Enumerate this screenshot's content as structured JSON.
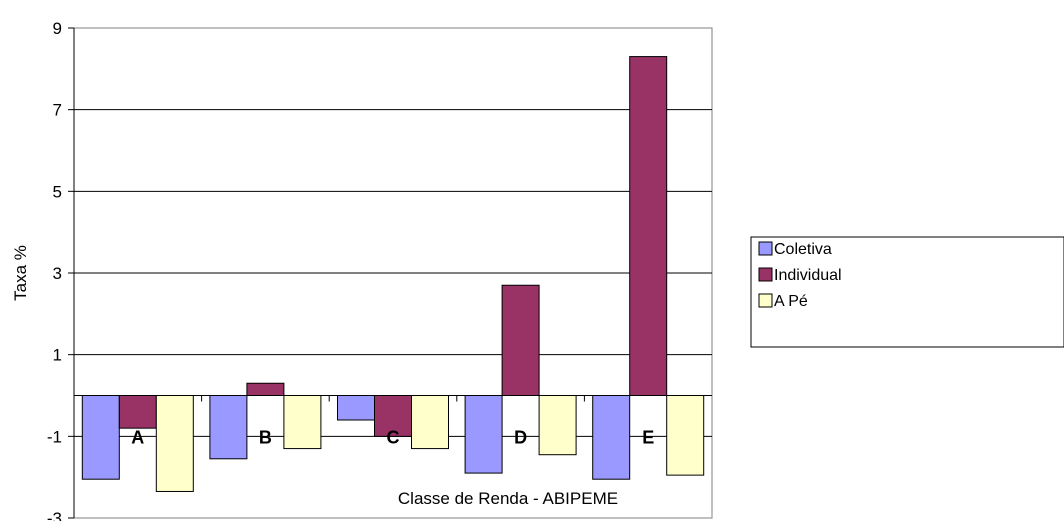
{
  "chart_data": {
    "type": "bar",
    "title": "",
    "xlabel": "Classe de Renda -  ABIPEME",
    "ylabel": "Taxa %",
    "ylim": [
      -3,
      9
    ],
    "yticks": [
      -3,
      -1,
      1,
      3,
      5,
      7,
      9
    ],
    "grid": true,
    "legend_position": "right",
    "categories": [
      "A",
      "B",
      "C",
      "D",
      "E"
    ],
    "series": [
      {
        "name": "Coletiva",
        "color": "#9999ff",
        "values": [
          -2.05,
          -1.55,
          -0.6,
          -1.9,
          -2.05
        ]
      },
      {
        "name": "Individual",
        "color": "#993366",
        "values": [
          -0.8,
          0.3,
          -1.0,
          2.7,
          8.3
        ]
      },
      {
        "name": "A Pé",
        "color": "#ffffcc",
        "values": [
          -2.35,
          -1.3,
          -1.3,
          -1.45,
          -1.95
        ]
      }
    ]
  }
}
